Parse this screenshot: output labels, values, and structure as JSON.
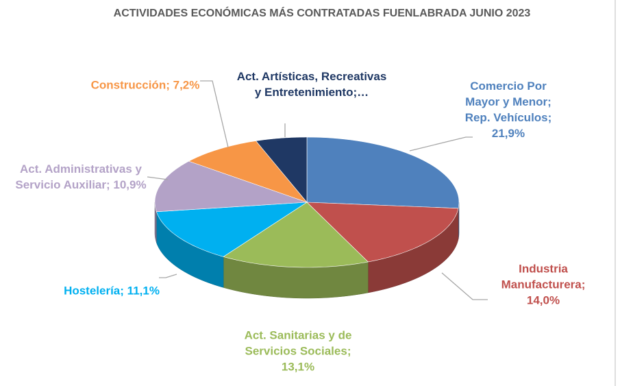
{
  "chart_data": {
    "type": "pie",
    "title": "ACTIVIDADES ECONÓMICAS MÁS CONTRATADAS FUENLABRADA JUNIO 2023",
    "categories": [
      "Comercio Por Mayor y Menor; Rep. Vehículos;",
      "Industria Manufacturera;",
      "Act. Sanitarias y de Servicios Sociales;",
      "Hostelería;",
      "Act. Administrativas y Servicio Auxiliar;",
      "Construcción;",
      "Act. Artísticas, Recreativas y Entretenimiento;…"
    ],
    "values": [
      21.9,
      14.0,
      13.1,
      11.1,
      10.9,
      7.2,
      4.5
    ],
    "value_labels": [
      "21,9%",
      "14,0%",
      "13,1%",
      "11,1%",
      "10,9%",
      "7,2%",
      null
    ],
    "colors": [
      "#4f81bd",
      "#c0504d",
      "#9bbb59",
      "#00b0f0",
      "#b3a2c7",
      "#f79646",
      "#1f3864"
    ]
  }
}
